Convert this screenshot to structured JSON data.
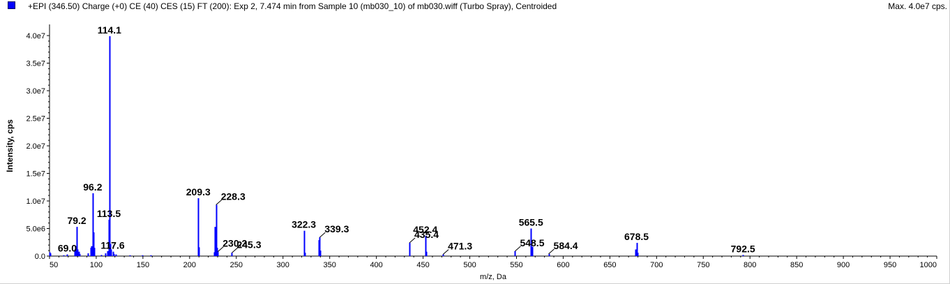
{
  "header": {
    "title": "+EPI (346.50) Charge (+0) CE (40) CES (15) FT (200): Exp 2, 7.474 min from Sample 10 (mb030_10) of mb030.wiff (Turbo Spray), Centroided",
    "max_label": "Max. 4.0e7 cps.",
    "legend_color": "#0000ff"
  },
  "chart_data": {
    "type": "bar",
    "xlabel": "m/z, Da",
    "ylabel": "Intensity, cps",
    "xlim": [
      50,
      1000
    ],
    "ylim": [
      0,
      40000000
    ],
    "x_ticks": [
      50,
      100,
      150,
      200,
      250,
      300,
      350,
      400,
      450,
      500,
      550,
      600,
      650,
      700,
      750,
      800,
      850,
      900,
      950,
      1000
    ],
    "x_tick_labels": [
      "50",
      "100",
      "150",
      "200",
      "250",
      "300",
      "350",
      "400",
      "450",
      "500",
      "550",
      "600",
      "650",
      "700",
      "750",
      "800",
      "850",
      "900",
      "950",
      "1000"
    ],
    "y_ticks": [
      0,
      5000000,
      10000000,
      15000000,
      20000000,
      25000000,
      30000000,
      35000000,
      40000000
    ],
    "y_tick_labels": [
      "0.0",
      "5.0e6",
      "1.0e7",
      "1.5e7",
      "2.0e7",
      "2.5e7",
      "3.0e7",
      "3.5e7",
      "4.0e7"
    ],
    "bar_color": "#0000ff",
    "peaks": [
      {
        "mz": 50.0,
        "intensity": 700000
      },
      {
        "mz": 51.0,
        "intensity": 500000
      },
      {
        "mz": 65.0,
        "intensity": 150000
      },
      {
        "mz": 69.0,
        "intensity": 300000
      },
      {
        "mz": 77.0,
        "intensity": 1200000
      },
      {
        "mz": 78.0,
        "intensity": 1800000
      },
      {
        "mz": 79.2,
        "intensity": 5300000
      },
      {
        "mz": 80.0,
        "intensity": 1200000
      },
      {
        "mz": 81.0,
        "intensity": 800000
      },
      {
        "mz": 82.0,
        "intensity": 400000
      },
      {
        "mz": 91.0,
        "intensity": 500000
      },
      {
        "mz": 94.0,
        "intensity": 1500000
      },
      {
        "mz": 95.0,
        "intensity": 1800000
      },
      {
        "mz": 96.2,
        "intensity": 11400000
      },
      {
        "mz": 97.0,
        "intensity": 4300000
      },
      {
        "mz": 98.0,
        "intensity": 1500000
      },
      {
        "mz": 105.0,
        "intensity": 200000
      },
      {
        "mz": 110.0,
        "intensity": 500000
      },
      {
        "mz": 112.0,
        "intensity": 900000
      },
      {
        "mz": 113.5,
        "intensity": 6600000
      },
      {
        "mz": 114.1,
        "intensity": 39900000
      },
      {
        "mz": 115.0,
        "intensity": 2200000
      },
      {
        "mz": 116.0,
        "intensity": 1200000
      },
      {
        "mz": 117.6,
        "intensity": 800000
      },
      {
        "mz": 119.0,
        "intensity": 400000
      },
      {
        "mz": 121.0,
        "intensity": 300000
      },
      {
        "mz": 136.0,
        "intensity": 150000
      },
      {
        "mz": 149.0,
        "intensity": 150000
      },
      {
        "mz": 158.0,
        "intensity": 150000
      },
      {
        "mz": 209.3,
        "intensity": 10500000
      },
      {
        "mz": 210.0,
        "intensity": 1600000
      },
      {
        "mz": 226.0,
        "intensity": 700000
      },
      {
        "mz": 227.3,
        "intensity": 5300000
      },
      {
        "mz": 228.3,
        "intensity": 9300000
      },
      {
        "mz": 229.0,
        "intensity": 1500000
      },
      {
        "mz": 230.2,
        "intensity": 800000
      },
      {
        "mz": 245.3,
        "intensity": 600000
      },
      {
        "mz": 322.3,
        "intensity": 4600000
      },
      {
        "mz": 323.0,
        "intensity": 600000
      },
      {
        "mz": 338.0,
        "intensity": 2900000
      },
      {
        "mz": 339.3,
        "intensity": 3400000
      },
      {
        "mz": 340.0,
        "intensity": 1000000
      },
      {
        "mz": 435.4,
        "intensity": 2400000
      },
      {
        "mz": 452.4,
        "intensity": 3700000
      },
      {
        "mz": 453.0,
        "intensity": 800000
      },
      {
        "mz": 471.3,
        "intensity": 300000
      },
      {
        "mz": 548.5,
        "intensity": 900000
      },
      {
        "mz": 565.5,
        "intensity": 5000000
      },
      {
        "mz": 566.5,
        "intensity": 1700000
      },
      {
        "mz": 584.4,
        "intensity": 400000
      },
      {
        "mz": 677.5,
        "intensity": 1200000
      },
      {
        "mz": 678.5,
        "intensity": 2400000
      },
      {
        "mz": 679.5,
        "intensity": 600000
      },
      {
        "mz": 792.5,
        "intensity": 200000
      }
    ],
    "annotations": [
      {
        "label": "114.1",
        "mz": 114.1,
        "intensity": 39900000,
        "leader": false
      },
      {
        "label": "96.2",
        "mz": 96.2,
        "intensity": 11400000,
        "leader": false
      },
      {
        "label": "113.5",
        "mz": 113.5,
        "intensity": 6600000,
        "leader": false
      },
      {
        "label": "79.2",
        "mz": 79.2,
        "intensity": 5300000,
        "leader": false
      },
      {
        "label": "69.0",
        "mz": 69.0,
        "intensity": 300000,
        "leader": false
      },
      {
        "label": "117.6",
        "mz": 117.6,
        "intensity": 800000,
        "leader": false
      },
      {
        "label": "209.3",
        "mz": 209.3,
        "intensity": 10500000,
        "leader": false
      },
      {
        "label": "228.3",
        "mz": 228.3,
        "intensity": 9300000,
        "leader": true
      },
      {
        "label": "230.2",
        "mz": 230.2,
        "intensity": 800000,
        "leader": true
      },
      {
        "label": "245.3",
        "mz": 245.3,
        "intensity": 600000,
        "leader": true
      },
      {
        "label": "322.3",
        "mz": 322.3,
        "intensity": 4600000,
        "leader": false
      },
      {
        "label": "339.3",
        "mz": 339.3,
        "intensity": 3400000,
        "leader": true
      },
      {
        "label": "435.4",
        "mz": 435.4,
        "intensity": 2400000,
        "leader": true
      },
      {
        "label": "452.4",
        "mz": 452.4,
        "intensity": 3700000,
        "leader": false
      },
      {
        "label": "471.3",
        "mz": 471.3,
        "intensity": 300000,
        "leader": true
      },
      {
        "label": "548.5",
        "mz": 548.5,
        "intensity": 900000,
        "leader": true
      },
      {
        "label": "565.5",
        "mz": 565.5,
        "intensity": 5000000,
        "leader": false
      },
      {
        "label": "584.4",
        "mz": 584.4,
        "intensity": 400000,
        "leader": true
      },
      {
        "label": "678.5",
        "mz": 678.5,
        "intensity": 2400000,
        "leader": false
      },
      {
        "label": "792.5",
        "mz": 792.5,
        "intensity": 200000,
        "leader": false
      }
    ]
  }
}
